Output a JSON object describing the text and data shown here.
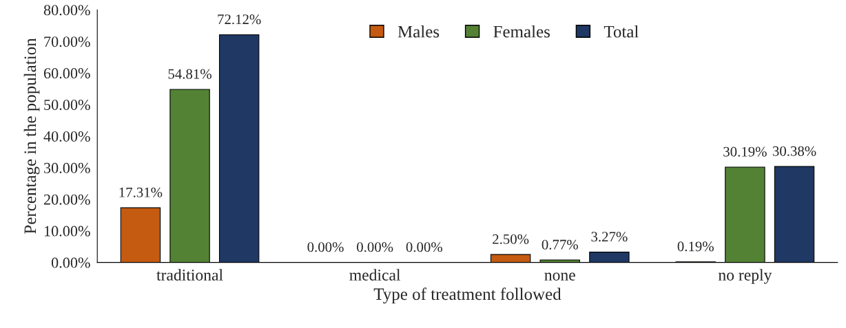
{
  "chart_data": {
    "type": "bar",
    "xlabel": "Type of treatment followed",
    "ylabel": "Percentage in the population",
    "categories": [
      "traditional",
      "medical",
      "none",
      "no reply"
    ],
    "series": [
      {
        "name": "Males",
        "color": "#c55a11",
        "values": [
          17.31,
          0,
          2.5,
          0.19
        ],
        "value_labels": [
          "17.31%",
          "0.00%",
          "2.50%",
          "0.19%"
        ]
      },
      {
        "name": "Females",
        "color": "#548235",
        "values": [
          54.81,
          0,
          0.77,
          30.19
        ],
        "value_labels": [
          "54.81%",
          "0.00%",
          "0.77%",
          "30.19%"
        ]
      },
      {
        "name": "Total",
        "color": "#1f3864",
        "values": [
          72.12,
          0,
          3.27,
          30.38
        ],
        "value_labels": [
          "72.12%",
          "0.00%",
          "3.27%",
          "30.38%"
        ]
      }
    ],
    "ylim": [
      0,
      80
    ],
    "yticks": [
      {
        "value": 0,
        "label": "0.00%"
      },
      {
        "value": 10,
        "label": "10.00%"
      },
      {
        "value": 20,
        "label": "20.00%"
      },
      {
        "value": 30,
        "label": "30.00%"
      },
      {
        "value": 40,
        "label": "40.00%"
      },
      {
        "value": 50,
        "label": "50.00%"
      },
      {
        "value": 60,
        "label": "60.00%"
      },
      {
        "value": 70,
        "label": "70.00%"
      },
      {
        "value": 80,
        "label": "80.00%"
      }
    ],
    "grid": false,
    "legend": "top"
  }
}
